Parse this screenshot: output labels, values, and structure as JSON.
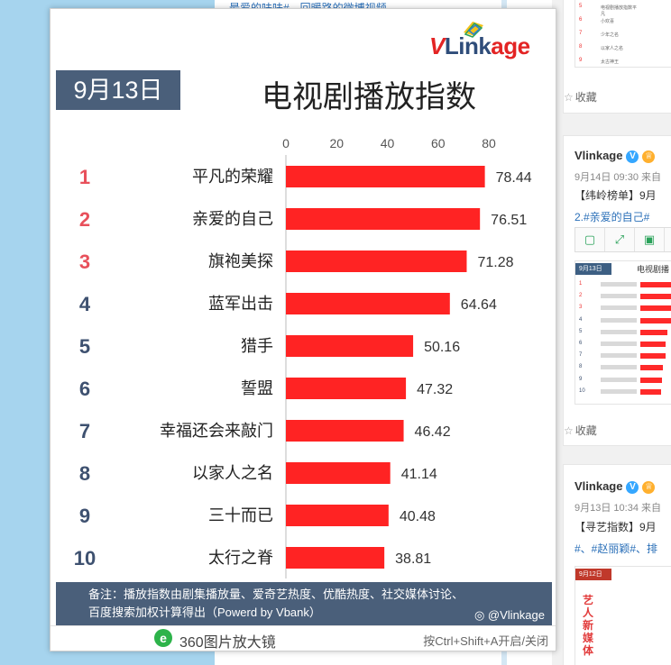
{
  "background": {
    "top_link": "最爱的味味#，回暖路的微博视频",
    "feed": [
      {
        "author": "",
        "date": "",
        "text": "",
        "favorite_label": "收藏",
        "thumb_rows": [
          "电视剧播放指数平凡",
          "小欢喜",
          "少年之名",
          "以家人之名",
          "太古神王"
        ]
      },
      {
        "author": "Vlinkage",
        "date": "9月14日 09:30 来自",
        "text": "【纬岭榜单】9月",
        "link_text": "2.#亲爱的自己#",
        "favorite_label": "收藏",
        "thumb": {
          "date": "9月13日",
          "title": "电视剧播"
        }
      },
      {
        "author": "Vlinkage",
        "date": "9月13日 10:34 来自",
        "text": "【寻艺指数】9月",
        "link_text": "#、#赵丽颖#、排",
        "thumb": {
          "date": "9月12日",
          "side_title": "艺人新媒体"
        }
      }
    ]
  },
  "popup": {
    "app_name": "360图片放大镜",
    "hint": "按Ctrl+Shift+A开启/关闭"
  },
  "infographic": {
    "brand": {
      "v": "V",
      "link": "Link",
      "age": "age"
    },
    "date": "9月13日",
    "title": "电视剧播放指数",
    "footnote_line1": "备注：播放指数由剧集播放量、爱奇艺热度、优酷热度、社交媒体讨论、",
    "footnote_line2": "百度搜索加权计算得出（Powerd by Vbank）",
    "weibo_handle": "@Vlinkage"
  },
  "chart_data": {
    "type": "bar",
    "orientation": "horizontal",
    "title": "电视剧播放指数",
    "xlim": [
      0,
      80
    ],
    "x_ticks": [
      0,
      20,
      40,
      60,
      80
    ],
    "ranks": [
      "1",
      "2",
      "3",
      "4",
      "5",
      "6",
      "7",
      "8",
      "9",
      "10"
    ],
    "categories": [
      "平凡的荣耀",
      "亲爱的自己",
      "旗袍美探",
      "蓝军出击",
      "猎手",
      "誓盟",
      "幸福还会来敲门",
      "以家人之名",
      "三十而已",
      "太行之脊"
    ],
    "values": [
      78.44,
      76.51,
      71.28,
      64.64,
      50.16,
      47.32,
      46.42,
      41.14,
      40.48,
      38.81
    ],
    "value_labels": [
      "78.44",
      "76.51",
      "71.28",
      "64.64",
      "50.16",
      "47.32",
      "46.42",
      "41.14",
      "40.48",
      "38.81"
    ],
    "bar_color": "#ff2323",
    "top_rank_color": "#e8505b",
    "rank_color": "#3e5170",
    "grid": false,
    "legend": "none"
  }
}
